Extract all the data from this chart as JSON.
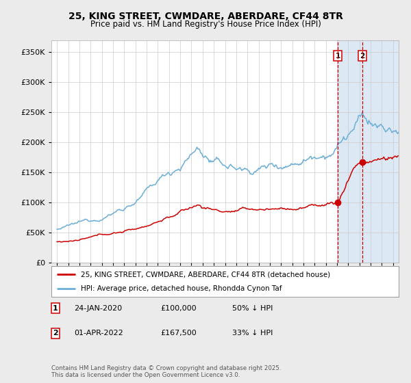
{
  "title": "25, KING STREET, CWMDARE, ABERDARE, CF44 8TR",
  "subtitle": "Price paid vs. HM Land Registry's House Price Index (HPI)",
  "legend_line1": "25, KING STREET, CWMDARE, ABERDARE, CF44 8TR (detached house)",
  "legend_line2": "HPI: Average price, detached house, Rhondda Cynon Taf",
  "footer": "Contains HM Land Registry data © Crown copyright and database right 2025.\nThis data is licensed under the Open Government Licence v3.0.",
  "transactions": [
    {
      "id": 1,
      "date": "24-JAN-2020",
      "price": "£100,000",
      "pct": "50% ↓ HPI"
    },
    {
      "id": 2,
      "date": "01-APR-2022",
      "price": "£167,500",
      "pct": "33% ↓ HPI"
    }
  ],
  "vline1_x": 2020.07,
  "vline2_x": 2022.25,
  "point1_x": 2020.07,
  "point1_y": 100000,
  "point2_x": 2022.25,
  "point2_y": 167500,
  "hpi_color": "#6baed6",
  "price_color": "#cc0000",
  "shade_color": "#dce9f5",
  "background_color": "#ebebeb",
  "plot_bg_color": "#ffffff",
  "grid_color": "#cccccc",
  "ylim": [
    0,
    370000
  ],
  "xlim": [
    1994.5,
    2025.5
  ],
  "yticks": [
    0,
    50000,
    100000,
    150000,
    200000,
    250000,
    300000,
    350000
  ],
  "xticks": [
    1995,
    1996,
    1997,
    1998,
    1999,
    2000,
    2001,
    2002,
    2003,
    2004,
    2005,
    2006,
    2007,
    2008,
    2009,
    2010,
    2011,
    2012,
    2013,
    2014,
    2015,
    2016,
    2017,
    2018,
    2019,
    2020,
    2021,
    2022,
    2023,
    2024,
    2025
  ]
}
